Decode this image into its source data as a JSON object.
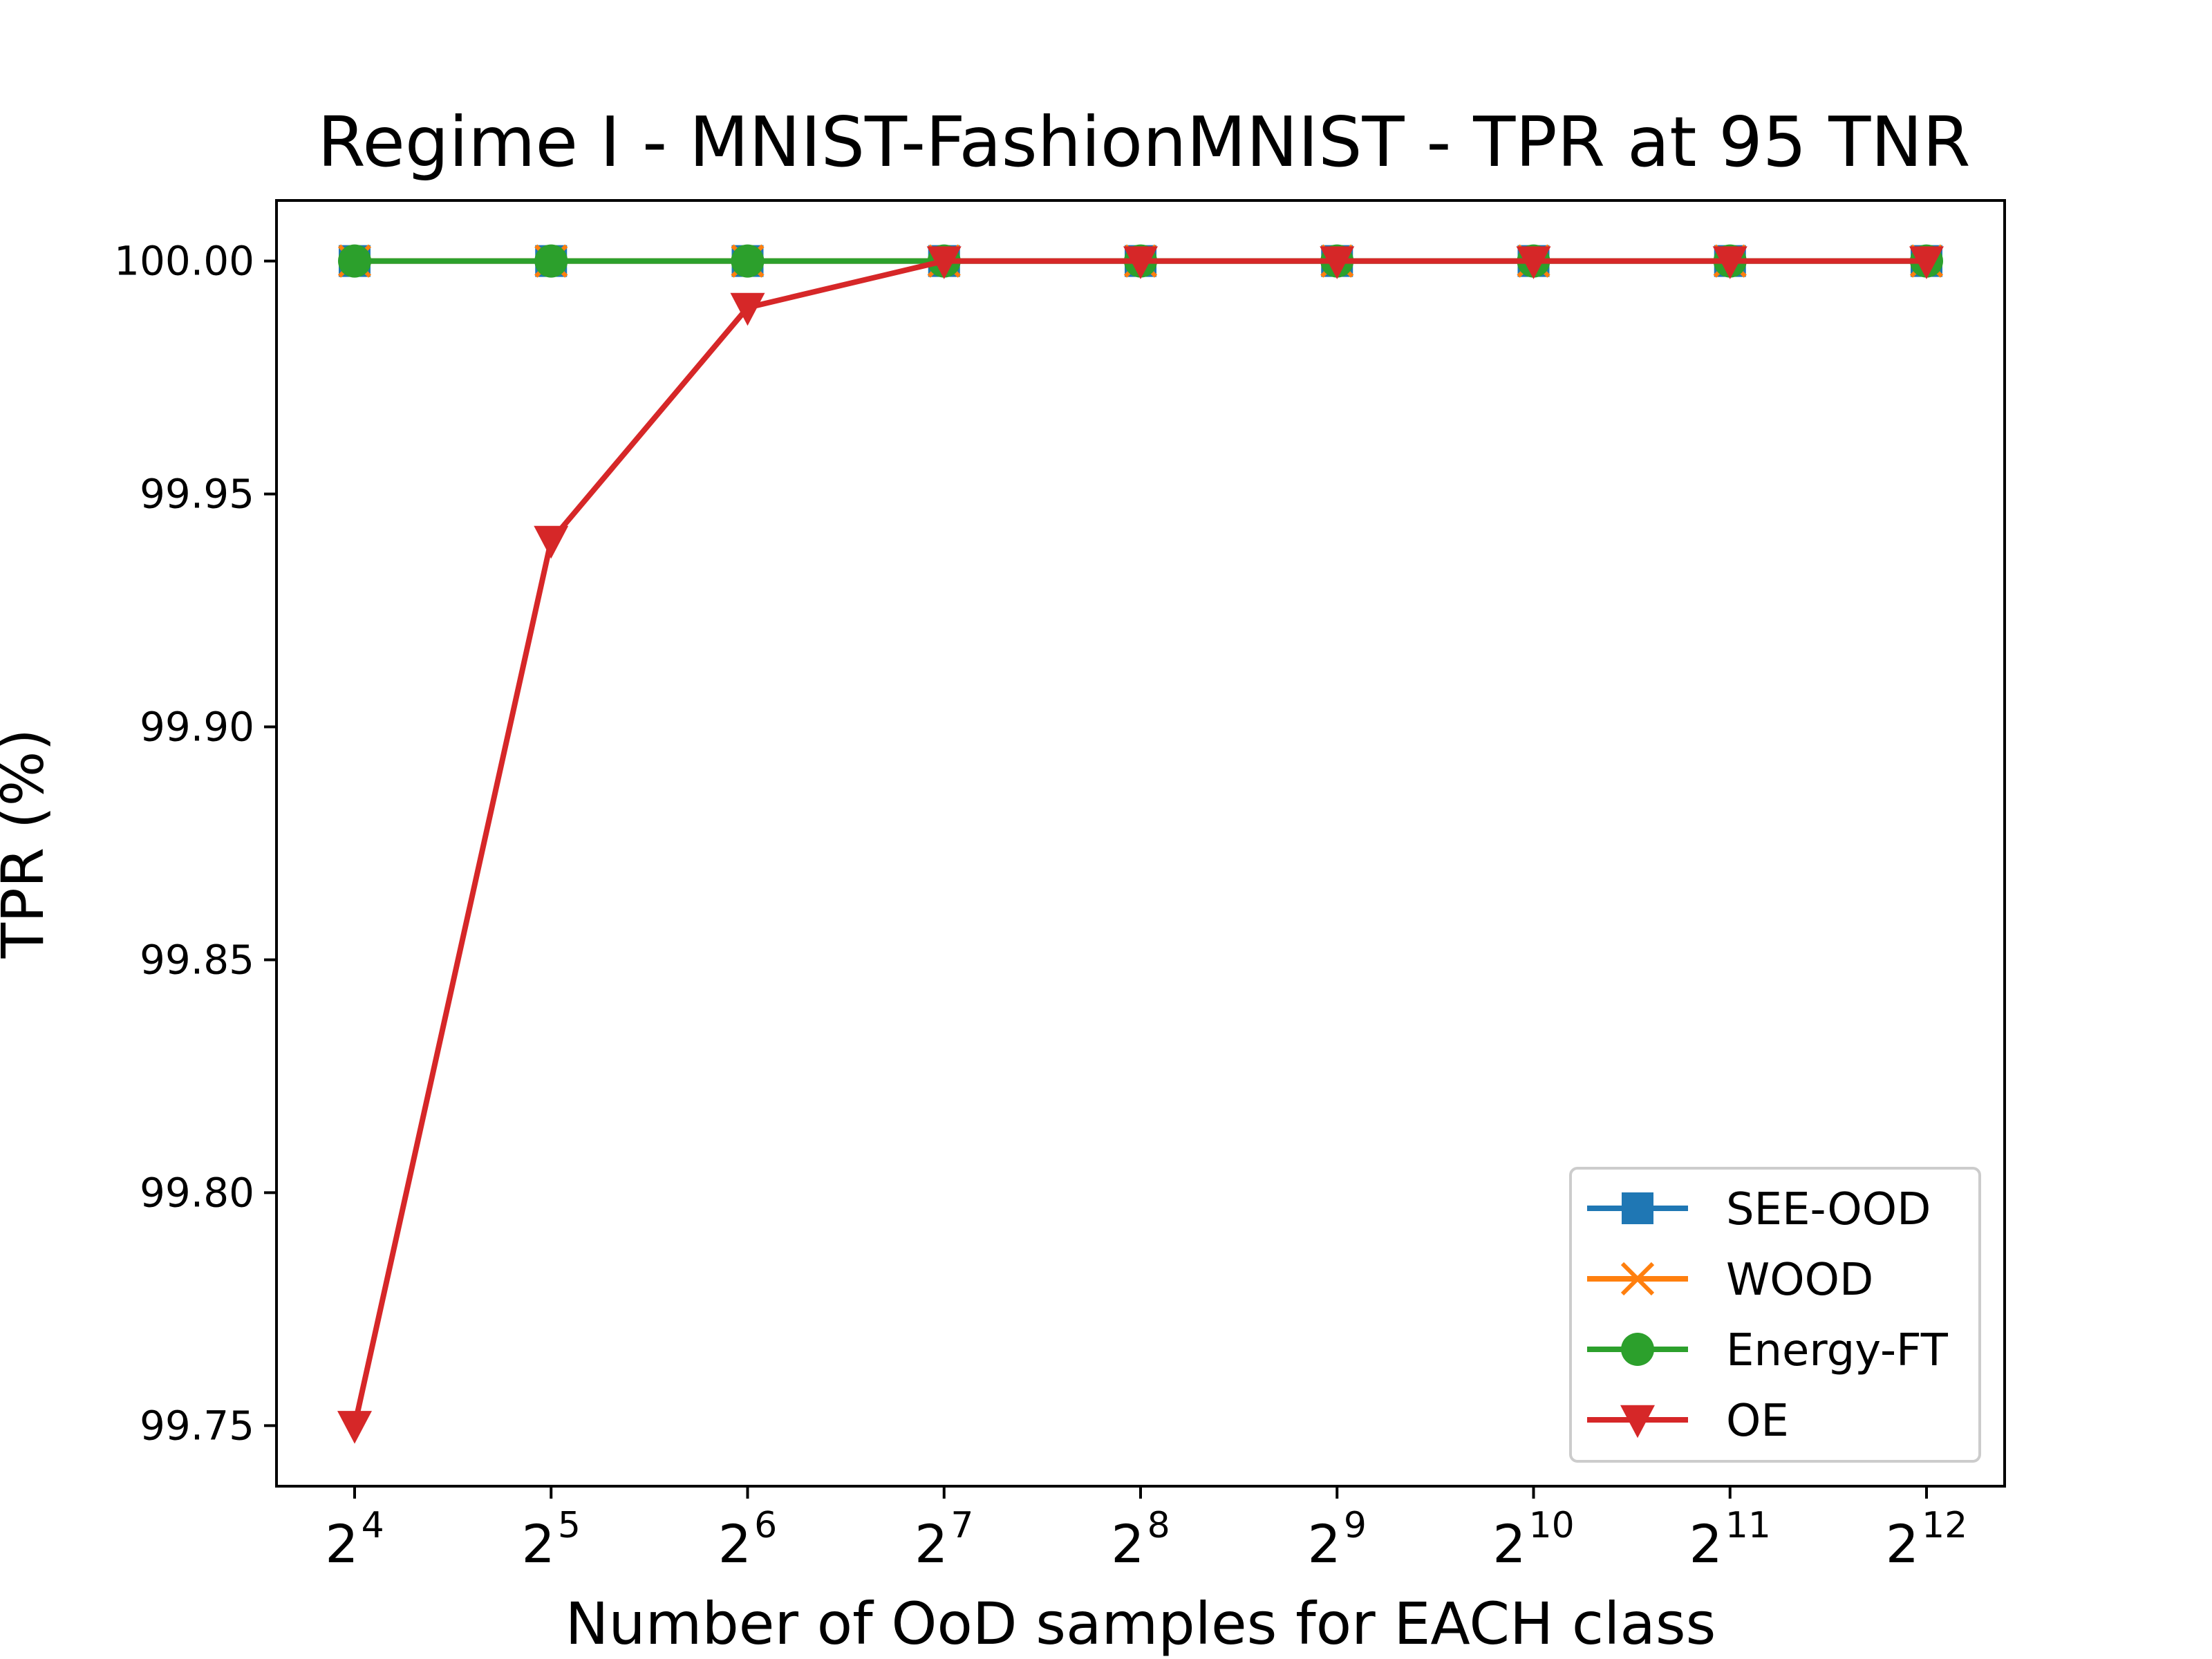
{
  "chart_data": {
    "type": "line",
    "title": "Regime I - MNIST-FashionMNIST - TPR at 95 TNR",
    "xlabel": "Number of OoD samples for EACH class",
    "ylabel": "TPR (%)",
    "x_tick_base": "2",
    "x_tick_exponents": [
      "4",
      "5",
      "6",
      "7",
      "8",
      "9",
      "10",
      "11",
      "12"
    ],
    "ylim": [
      99.737,
      100.013
    ],
    "yticks": [
      99.75,
      99.8,
      99.85,
      99.9,
      99.95,
      100.0
    ],
    "ytick_labels": [
      "99.75",
      "99.80",
      "99.85",
      "99.90",
      "99.95",
      "100.00"
    ],
    "grid": false,
    "legend_position": "lower-right",
    "series": [
      {
        "name": "SEE-OOD",
        "color": "#1f77b4",
        "marker": "square",
        "values": [
          100.0,
          100.0,
          100.0,
          100.0,
          100.0,
          100.0,
          100.0,
          100.0,
          100.0
        ]
      },
      {
        "name": "WOOD",
        "color": "#ff7f0e",
        "marker": "x",
        "values": [
          100.0,
          100.0,
          100.0,
          100.0,
          100.0,
          100.0,
          100.0,
          100.0,
          100.0
        ]
      },
      {
        "name": "Energy-FT",
        "color": "#2ca02c",
        "marker": "circle",
        "values": [
          100.0,
          100.0,
          100.0,
          100.0,
          100.0,
          100.0,
          100.0,
          100.0,
          100.0
        ]
      },
      {
        "name": "OE",
        "color": "#d62728",
        "marker": "triangle-down",
        "values": [
          99.75,
          99.94,
          99.99,
          100.0,
          100.0,
          100.0,
          100.0,
          100.0,
          100.0
        ]
      }
    ]
  }
}
